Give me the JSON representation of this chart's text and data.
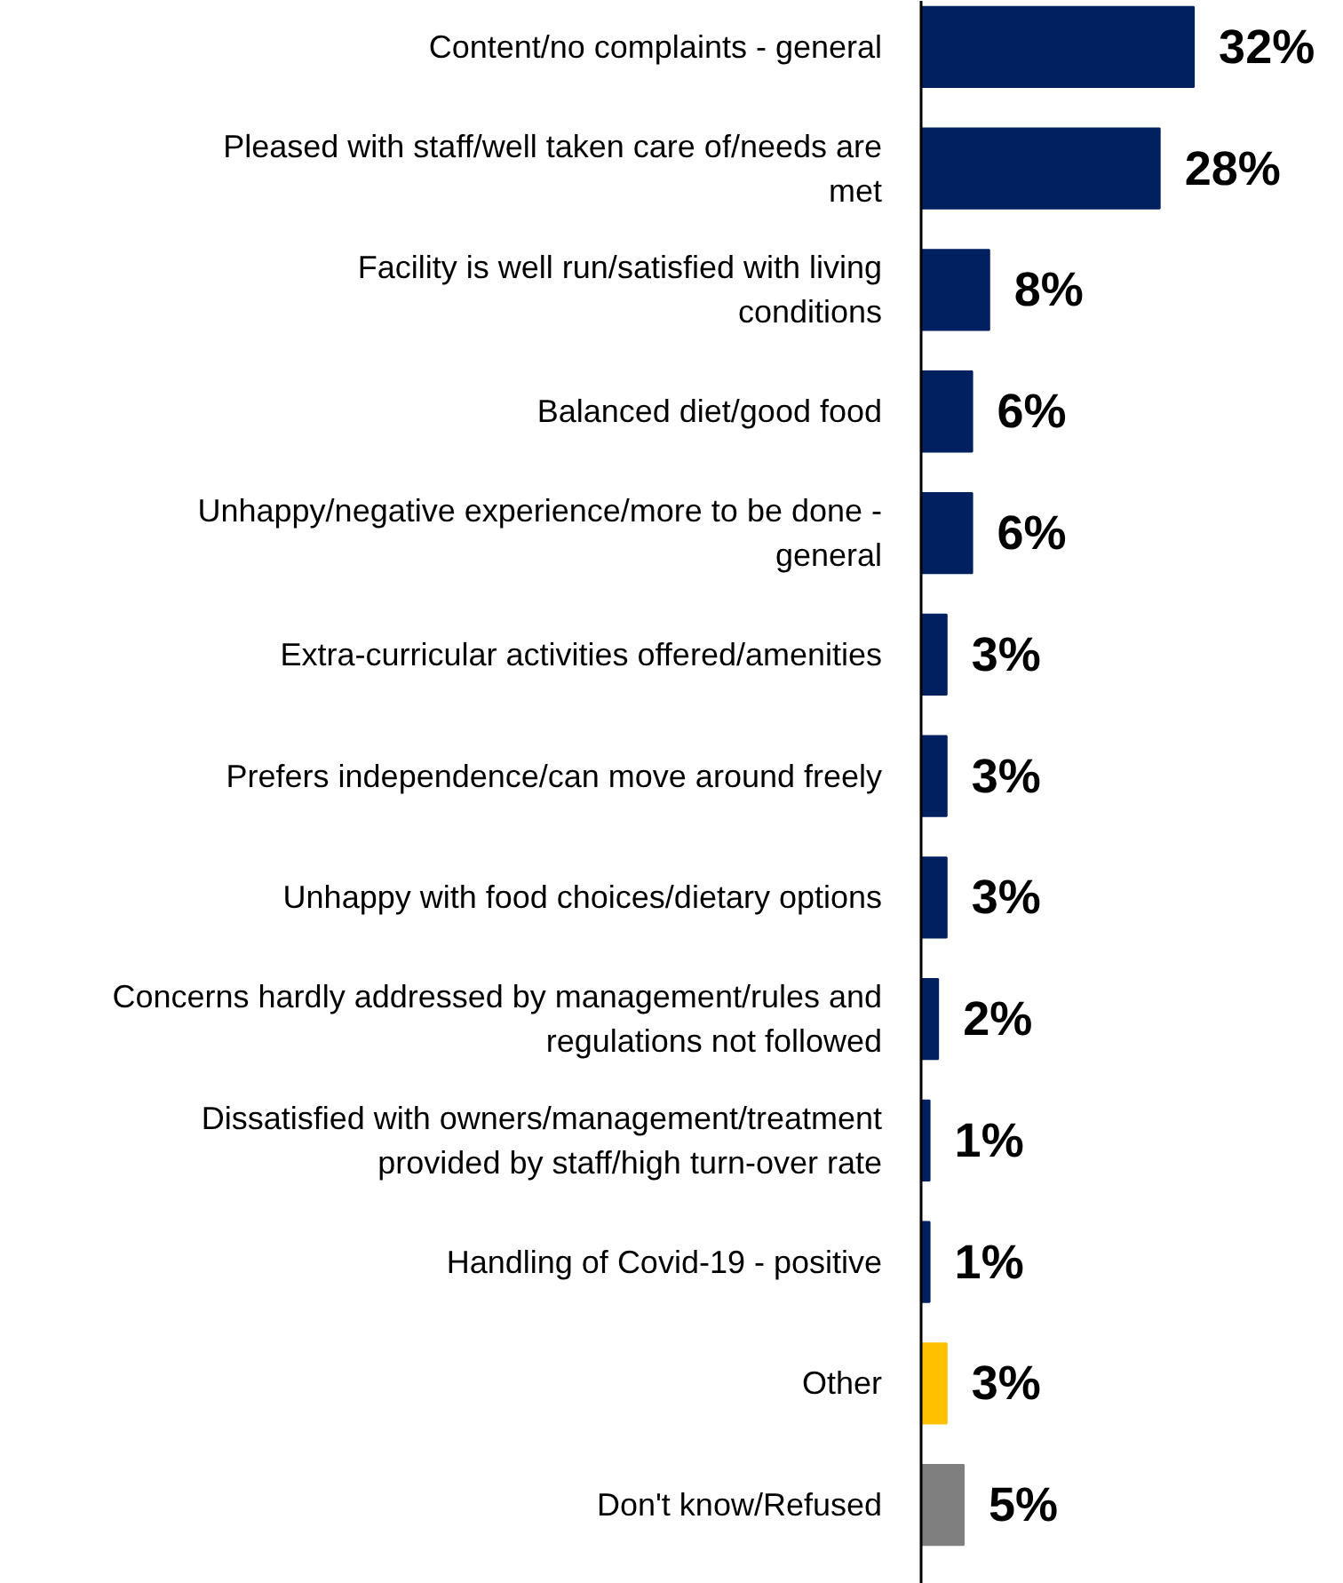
{
  "chart_data": {
    "type": "bar",
    "orientation": "horizontal",
    "categories": [
      "Content/no complaints - general",
      "Pleased with staff/well taken care of/needs are met",
      "Facility is well run/satisfied with living conditions",
      "Balanced diet/good food",
      "Unhappy/negative experience/more to be done - general",
      "Extra-curricular activities offered/amenities",
      "Prefers independence/can move around freely",
      "Unhappy with food choices/dietary options",
      "Concerns hardly addressed by management/rules and regulations not followed",
      "Dissatisfied with owners/management/treatment provided by staff/high turn-over rate",
      "Handling of Covid-19 - positive",
      "Other",
      "Don't know/Refused"
    ],
    "values": [
      32,
      28,
      8,
      6,
      6,
      3,
      3,
      3,
      2,
      1,
      1,
      3,
      5
    ],
    "colors": [
      "#002060",
      "#002060",
      "#002060",
      "#002060",
      "#002060",
      "#002060",
      "#002060",
      "#002060",
      "#002060",
      "#002060",
      "#002060",
      "#ffc000",
      "#7f7f7f"
    ],
    "value_labels": [
      "32%",
      "28%",
      "8%",
      "6%",
      "6%",
      "3%",
      "3%",
      "3%",
      "2%",
      "1%",
      "1%",
      "3%",
      "5%"
    ]
  }
}
